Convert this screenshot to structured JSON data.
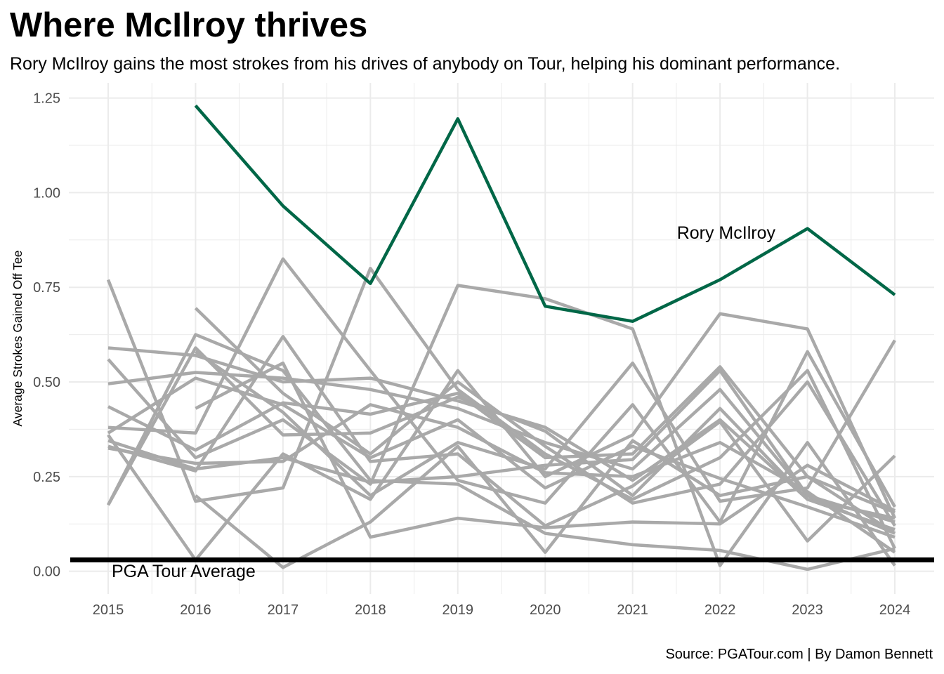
{
  "title": "Where McIlroy thrives",
  "subtitle": "Rory McIlroy gains the most strokes from his drives of anybody on Tour, helping his dominant performance.",
  "caption": "Source: PGATour.com | By Damon Bennett",
  "colors": {
    "highlight": "#006747",
    "others": "#a9a9a9",
    "baseline": "#000000",
    "grid": "#ebebeb"
  },
  "chart_data": {
    "type": "line",
    "title": "Where McIlroy thrives",
    "xlabel": "",
    "ylabel": "Average Strokes Gained Off Tee",
    "x": [
      2015,
      2016,
      2017,
      2018,
      2019,
      2020,
      2021,
      2022,
      2023,
      2024
    ],
    "xticks": [
      "2015",
      "2016",
      "2017",
      "2018",
      "2019",
      "2020",
      "2021",
      "2022",
      "2023",
      "2024"
    ],
    "yticks": [
      "0.00",
      "0.25",
      "0.50",
      "0.75",
      "1.00",
      "1.25"
    ],
    "ylim": [
      -0.06,
      1.29
    ],
    "grid": true,
    "highlight_series": {
      "name": "Rory McIlroy",
      "values": [
        null,
        1.23,
        0.965,
        0.76,
        1.195,
        0.7,
        0.66,
        0.77,
        0.905,
        0.73
      ]
    },
    "reference_line": {
      "label": "PGA Tour Average",
      "y": 0.03
    },
    "other_series": [
      {
        "values": [
          0.77,
          0.185,
          0.22,
          0.8,
          0.48,
          0.31,
          0.19,
          0.3,
          0.53,
          0.06
        ]
      },
      {
        "values": [
          0.59,
          0.57,
          0.5,
          0.51,
          0.45,
          0.38,
          0.24,
          0.4,
          0.19,
          0.14
        ]
      },
      {
        "values": [
          0.495,
          0.525,
          0.51,
          0.48,
          0.43,
          0.34,
          0.27,
          0.48,
          0.2,
          0.1
        ]
      },
      {
        "values": [
          0.56,
          0.3,
          0.4,
          0.23,
          0.755,
          0.72,
          0.64,
          0.015,
          0.34,
          0.015
        ]
      },
      {
        "values": [
          0.435,
          0.32,
          0.445,
          0.415,
          0.47,
          0.3,
          0.31,
          0.54,
          0.25,
          0.1
        ]
      },
      {
        "values": [
          0.38,
          0.365,
          0.825,
          0.53,
          0.24,
          0.18,
          0.44,
          0.13,
          0.58,
          0.17
        ]
      },
      {
        "values": [
          0.36,
          0.03,
          0.31,
          0.19,
          0.53,
          0.25,
          0.36,
          0.68,
          0.64,
          0.14
        ]
      },
      {
        "values": [
          0.345,
          0.27,
          0.3,
          0.235,
          0.25,
          0.28,
          0.295,
          0.53,
          0.2,
          0.13
        ]
      },
      {
        "values": [
          0.33,
          0.265,
          0.62,
          0.29,
          0.31,
          0.12,
          0.225,
          0.395,
          0.08,
          0.305
        ]
      },
      {
        "values": [
          0.325,
          0.285,
          0.29,
          0.44,
          0.38,
          0.26,
          0.25,
          0.34,
          0.21,
          0.05
        ]
      },
      {
        "values": [
          0.175,
          0.59,
          0.36,
          0.365,
          0.46,
          0.37,
          0.2,
          0.43,
          0.19,
          0.11
        ]
      },
      {
        "values": [
          0.175,
          0.625,
          0.53,
          0.24,
          0.23,
          0.1,
          0.07,
          0.055,
          0.005,
          0.06
        ]
      },
      {
        "values": [
          null,
          0.43,
          0.55,
          0.09,
          0.14,
          0.115,
          0.13,
          0.125,
          0.28,
          0.16
        ]
      },
      {
        "values": [
          null,
          0.695,
          0.47,
          0.31,
          0.5,
          0.33,
          0.18,
          0.23,
          0.5,
          0.12
        ]
      },
      {
        "values": [
          null,
          0.2,
          0.01,
          0.13,
          0.33,
          0.05,
          0.345,
          0.2,
          0.25,
          0.155
        ]
      },
      {
        "values": [
          null,
          0.58,
          0.42,
          0.2,
          0.34,
          0.27,
          0.55,
          0.185,
          0.22,
          0.61
        ]
      },
      {
        "values": [
          0.365,
          0.51,
          0.44,
          0.3,
          0.4,
          0.22,
          0.33,
          0.245,
          0.17,
          0.09
        ]
      }
    ]
  }
}
